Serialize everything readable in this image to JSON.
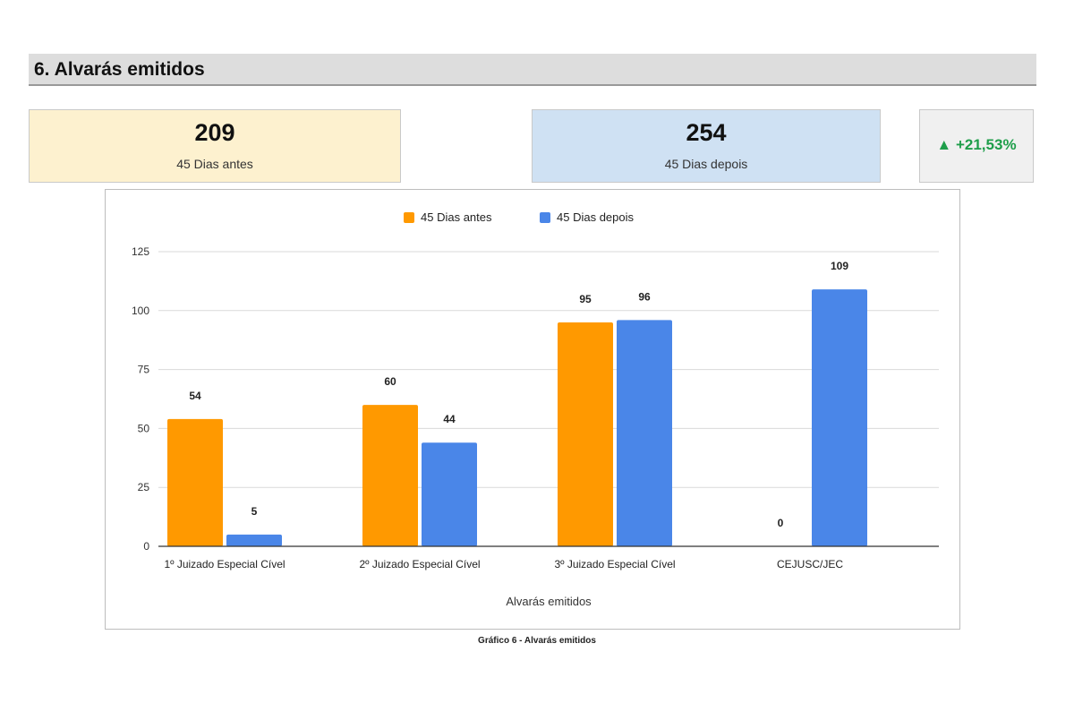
{
  "header": {
    "title": "6. Alvarás emitidos"
  },
  "kpis": {
    "before": {
      "value": "209",
      "label": "45 Dias antes",
      "color": "#fdf1cf"
    },
    "after": {
      "value": "254",
      "label": "45 Dias depois",
      "color": "#cfe1f3"
    },
    "change": {
      "icon": "triangle-up-icon",
      "text": "▲ +21,53%",
      "color": "#1e9e4a"
    }
  },
  "chart_data": {
    "type": "bar",
    "categories": [
      "1º Juizado Especial Cível",
      "2º Juizado Especial Cível",
      "3º Juizado Especial Cível",
      "CEJUSC/JEC"
    ],
    "series": [
      {
        "name": "45 Dias antes",
        "values": [
          54,
          60,
          95,
          0
        ],
        "color": "#ff9900"
      },
      {
        "name": "45 Dias depois",
        "values": [
          5,
          44,
          96,
          109
        ],
        "color": "#4a86e8"
      }
    ],
    "xlabel": "Alvarás emitidos",
    "ylabel": "",
    "ylim": [
      0,
      125
    ],
    "yticks": [
      0,
      25,
      50,
      75,
      100,
      125
    ],
    "legend": "top-center",
    "grid": true
  },
  "caption": "Gráfico 6 - Alvarás emitidos"
}
